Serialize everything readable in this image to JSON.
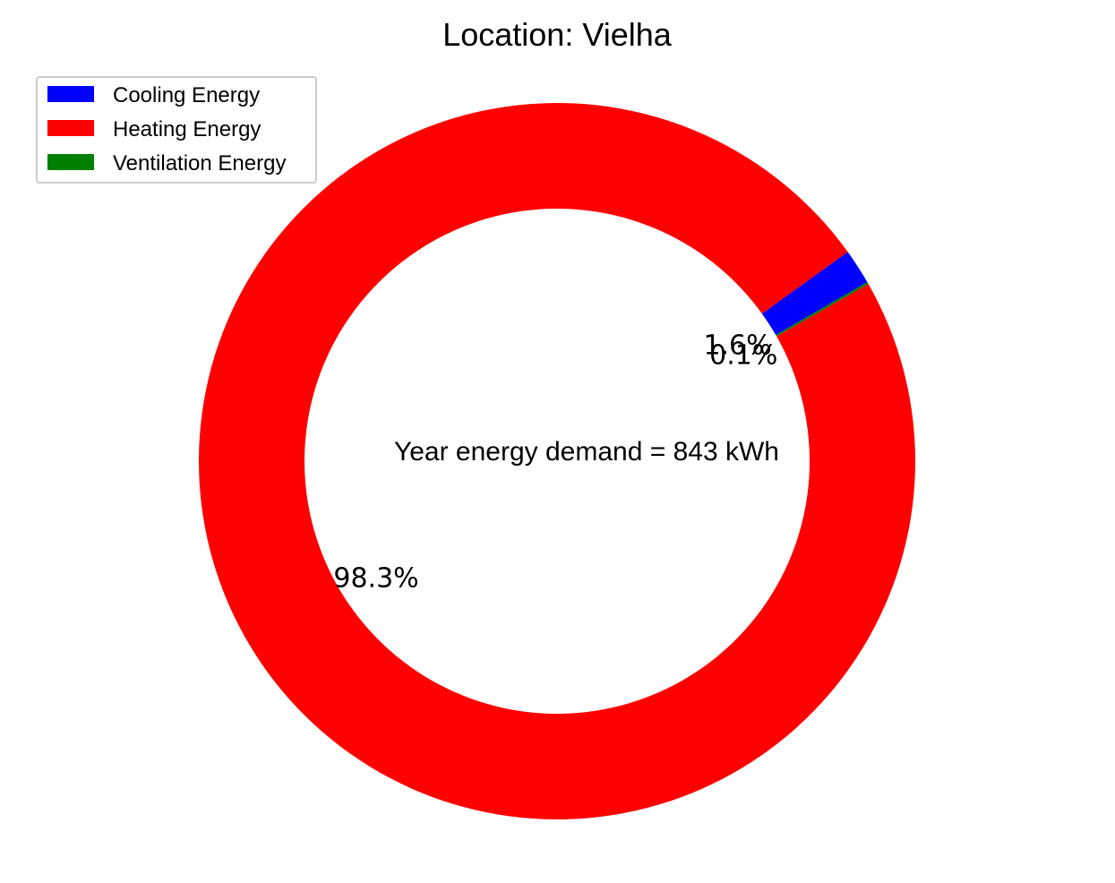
{
  "chart_data": {
    "type": "pie",
    "donut": true,
    "title": "Location: Vielha",
    "center_label": "Year energy demand = 843 kWh",
    "start_angle_deg": 30,
    "direction": "counterclockwise",
    "legend_position": "top-left",
    "slices": [
      {
        "label": "Cooling Energy",
        "percent": 1.6,
        "pct_label": "1.6%",
        "color": "#0000ff"
      },
      {
        "label": "Heating Energy",
        "percent": 98.3,
        "pct_label": "98.3%",
        "color": "#ff0000"
      },
      {
        "label": "Ventilation Energy",
        "percent": 0.1,
        "pct_label": "0.1%",
        "color": "#008000"
      }
    ]
  }
}
